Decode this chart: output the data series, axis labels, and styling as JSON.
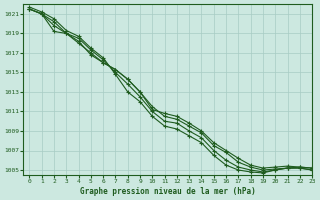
{
  "title": "Graphe pression niveau de la mer (hPa)",
  "xlim": [
    -0.5,
    23
  ],
  "ylim": [
    1004.5,
    1022.0
  ],
  "yticks": [
    1005,
    1007,
    1009,
    1011,
    1013,
    1015,
    1017,
    1019,
    1021
  ],
  "xticks": [
    0,
    1,
    2,
    3,
    4,
    5,
    6,
    7,
    8,
    9,
    10,
    11,
    12,
    13,
    14,
    15,
    16,
    17,
    18,
    19,
    20,
    21,
    22,
    23
  ],
  "bg_color": "#cce8e0",
  "line_color": "#1f5c1f",
  "grid_color": "#a8ccc4",
  "series": [
    [
      1021.5,
      1021.0,
      1019.2,
      1019.0,
      1018.2,
      1016.8,
      1016.0,
      1015.3,
      1014.3,
      1013.0,
      1011.2,
      1010.8,
      1010.5,
      1009.8,
      1009.0,
      1007.8,
      1007.0,
      1006.2,
      1005.5,
      1005.2,
      1005.3,
      1005.4,
      1005.3,
      1005.2
    ],
    [
      1021.5,
      1021.0,
      1019.8,
      1019.0,
      1018.0,
      1017.0,
      1016.0,
      1015.3,
      1014.3,
      1013.0,
      1011.5,
      1010.5,
      1010.2,
      1009.5,
      1008.8,
      1007.5,
      1006.8,
      1005.8,
      1005.3,
      1005.0,
      1005.1,
      1005.2,
      1005.3,
      1005.2
    ],
    [
      1021.5,
      1021.0,
      1020.2,
      1019.0,
      1018.5,
      1017.3,
      1016.3,
      1015.0,
      1013.8,
      1012.5,
      1011.0,
      1010.0,
      1009.8,
      1009.0,
      1008.3,
      1007.0,
      1006.0,
      1005.3,
      1005.0,
      1004.8,
      1005.0,
      1005.2,
      1005.2,
      1005.0
    ],
    [
      1021.7,
      1021.2,
      1020.5,
      1019.3,
      1018.7,
      1017.5,
      1016.5,
      1014.8,
      1013.0,
      1012.0,
      1010.5,
      1009.5,
      1009.2,
      1008.5,
      1007.8,
      1006.5,
      1005.5,
      1005.0,
      1004.8,
      1004.7,
      1005.0,
      1005.2,
      1005.2,
      1005.0
    ]
  ]
}
